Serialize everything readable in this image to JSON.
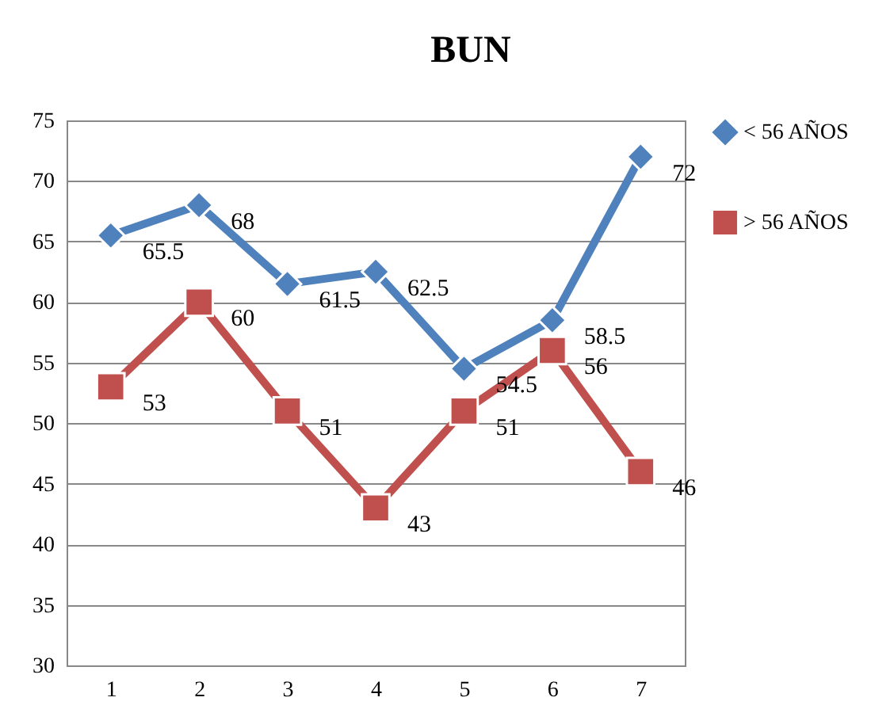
{
  "chart_data": {
    "type": "line",
    "title": "BUN",
    "categories": [
      "1",
      "2",
      "3",
      "4",
      "5",
      "6",
      "7"
    ],
    "series": [
      {
        "name": "< 56 AÑOS",
        "color": "#4f81bd",
        "marker": "diamond",
        "values": [
          65.5,
          68,
          61.5,
          62.5,
          54.5,
          58.5,
          72
        ]
      },
      {
        "name": "> 56 AÑOS",
        "color": "#c0504d",
        "marker": "square",
        "values": [
          53,
          60,
          51,
          43,
          51,
          56,
          46
        ]
      }
    ],
    "ylim": [
      30,
      75
    ],
    "yticks": [
      30,
      35,
      40,
      45,
      50,
      55,
      60,
      65,
      70,
      75
    ],
    "grid": "y",
    "legend": "right",
    "data_labels": true,
    "line_style": "solid"
  }
}
